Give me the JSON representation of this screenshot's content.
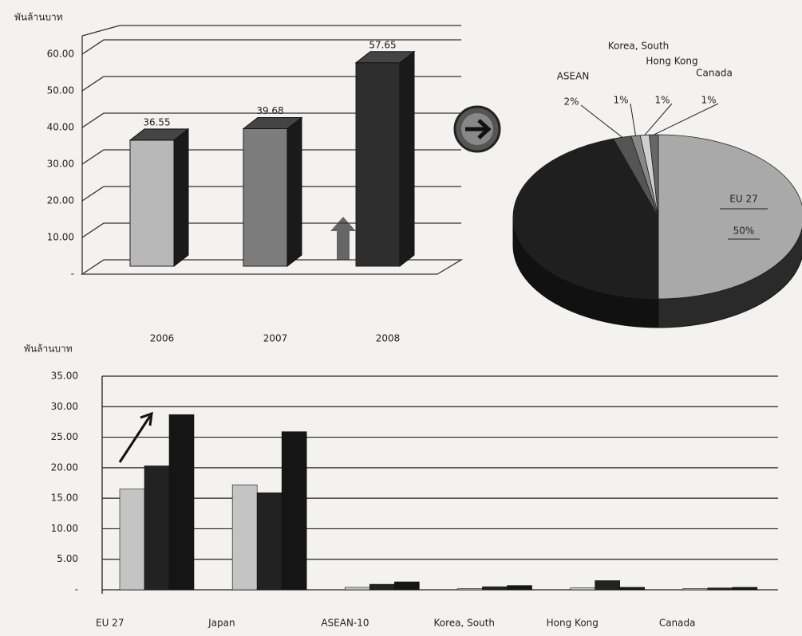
{
  "chart_data": [
    {
      "type": "bar3d",
      "y_label": "พันล้านบาท",
      "categories": [
        "2006",
        "2007",
        "2008"
      ],
      "values": [
        36.55,
        39.68,
        57.65
      ],
      "colors": [
        "#b8b8b8",
        "#7c7c7c",
        "#2e2e2e"
      ],
      "ylim": [
        0,
        65
      ],
      "yticks": [
        {
          "value": 0,
          "label": "-"
        },
        {
          "value": 10,
          "label": "10.00"
        },
        {
          "value": 20,
          "label": "20.00"
        },
        {
          "value": 30,
          "label": "30.00"
        },
        {
          "value": 40,
          "label": "40.00"
        },
        {
          "value": 50,
          "label": "50.00"
        },
        {
          "value": 60,
          "label": "60.00"
        }
      ],
      "grid": true
    },
    {
      "type": "pie",
      "categories": [
        "EU 27",
        null,
        "ASEAN",
        "Korea, South",
        "Hong Kong",
        "Canada"
      ],
      "values": [
        50,
        45,
        2,
        1,
        1,
        1
      ],
      "value_labels": [
        "50%",
        null,
        "2%",
        "1%",
        "1%",
        "1%"
      ],
      "colors": [
        "#a9a9a9",
        "#1f1f1f",
        "#555555",
        "#888888",
        "#cfcfcf",
        "#666666"
      ]
    },
    {
      "type": "grouped_bar",
      "y_label": "พันล้านบาท",
      "categories": [
        "EU 27",
        "Japan",
        "ASEAN-10",
        "Korea, South",
        "Hong Kong",
        "Canada"
      ],
      "series": [
        {
          "color": "#c4c4c4",
          "values": [
            16.5,
            17.2,
            0.4,
            0.2,
            0.3,
            0.2
          ]
        },
        {
          "color": "#222222",
          "values": [
            20.3,
            15.9,
            0.9,
            0.5,
            1.5,
            0.3
          ]
        },
        {
          "color": "#151515",
          "values": [
            28.7,
            25.9,
            1.3,
            0.7,
            0.4,
            0.4
          ]
        }
      ],
      "ylim": [
        0,
        35
      ],
      "yticks": [
        {
          "value": 0,
          "label": "-"
        },
        {
          "value": 5,
          "label": "5.00"
        },
        {
          "value": 10,
          "label": "10.00"
        },
        {
          "value": 15,
          "label": "15.00"
        },
        {
          "value": 20,
          "label": "20.00"
        },
        {
          "value": 25,
          "label": "25.00"
        },
        {
          "value": 30,
          "label": "30.00"
        },
        {
          "value": 35,
          "label": "35.00"
        }
      ],
      "grid": true
    }
  ]
}
